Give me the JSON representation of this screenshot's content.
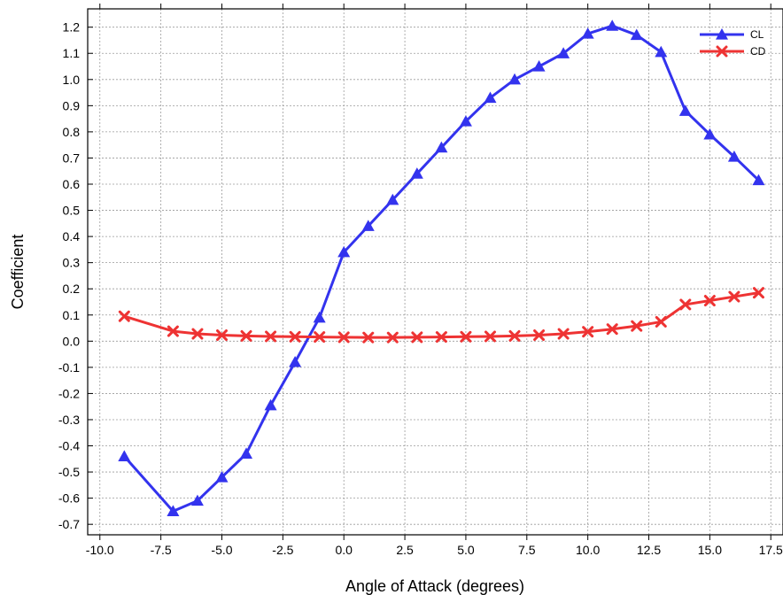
{
  "chart_data": {
    "type": "line",
    "title": "",
    "xlabel": "Angle of Attack (degrees)",
    "ylabel": "Coefficient",
    "xlim": [
      -10.5,
      18.0
    ],
    "ylim": [
      -0.74,
      1.27
    ],
    "xticks": [
      -10.0,
      -7.5,
      -5.0,
      -2.5,
      0.0,
      2.5,
      5.0,
      7.5,
      10.0,
      12.5,
      15.0,
      17.5
    ],
    "xtick_labels": [
      "-10.0",
      "-7.5",
      "-5.0",
      "-2.5",
      "0.0",
      "2.5",
      "5.0",
      "7.5",
      "10.0",
      "12.5",
      "15.0",
      "17.5"
    ],
    "yticks": [
      -0.7,
      -0.6,
      -0.5,
      -0.4,
      -0.3,
      -0.2,
      -0.1,
      0.0,
      0.1,
      0.2,
      0.3,
      0.4,
      0.5,
      0.6,
      0.7,
      0.8,
      0.9,
      1.0,
      1.1,
      1.2
    ],
    "ytick_labels": [
      "-0.7",
      "-0.6",
      "-0.5",
      "-0.4",
      "-0.3",
      "-0.2",
      "-0.1",
      "0.0",
      "0.1",
      "0.2",
      "0.3",
      "0.4",
      "0.5",
      "0.6",
      "0.7",
      "0.8",
      "0.9",
      "1.0",
      "1.1",
      "1.2"
    ],
    "grid": true,
    "legend_position": "top-right",
    "series": [
      {
        "name": "CL",
        "color": "#3333ee",
        "marker": "triangle",
        "x": [
          -9,
          -7,
          -6,
          -5,
          -4,
          -3,
          -2,
          -1,
          0,
          1,
          2,
          3,
          4,
          5,
          6,
          7,
          8,
          9,
          10,
          11,
          12,
          13,
          14,
          15,
          16,
          17
        ],
        "y": [
          -0.44,
          -0.65,
          -0.61,
          -0.52,
          -0.43,
          -0.245,
          -0.08,
          0.09,
          0.34,
          0.44,
          0.54,
          0.64,
          0.74,
          0.84,
          0.93,
          1.0,
          1.05,
          1.1,
          1.175,
          1.205,
          1.17,
          1.105,
          0.88,
          0.79,
          0.705,
          0.615
        ]
      },
      {
        "name": "CD",
        "color": "#ee3333",
        "marker": "x",
        "x": [
          -9,
          -7,
          -6,
          -5,
          -4,
          -3,
          -2,
          -1,
          0,
          1,
          2,
          3,
          4,
          5,
          6,
          7,
          8,
          9,
          10,
          11,
          12,
          13,
          14,
          15,
          16,
          17
        ],
        "y": [
          0.095,
          0.038,
          0.028,
          0.023,
          0.02,
          0.018,
          0.017,
          0.016,
          0.015,
          0.014,
          0.014,
          0.015,
          0.016,
          0.017,
          0.018,
          0.02,
          0.023,
          0.028,
          0.036,
          0.046,
          0.058,
          0.074,
          0.14,
          0.155,
          0.17,
          0.185
        ]
      }
    ]
  }
}
